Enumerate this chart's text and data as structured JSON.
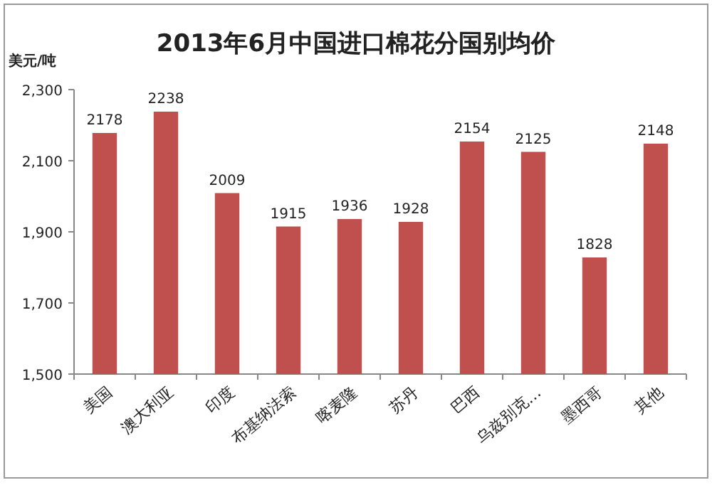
{
  "chart_data": {
    "type": "bar",
    "title": "2013年6月中国进口棉花分国别均价",
    "ylabel": "美元/吨",
    "categories": [
      "美国",
      "澳大利亚",
      "印度",
      "布基纳法索",
      "喀麦隆",
      "苏丹",
      "巴西",
      "乌兹别克…",
      "墨西哥",
      "其他"
    ],
    "values": [
      2178,
      2238,
      2009,
      1915,
      1936,
      1928,
      2154,
      2125,
      1828,
      2148
    ],
    "color": "#c0504d",
    "data_labels": true,
    "ylim": [
      1500,
      2300
    ],
    "yticks": [
      {
        "value": 1500,
        "label": "1,500"
      },
      {
        "value": 1700,
        "label": "1,700"
      },
      {
        "value": 1900,
        "label": "1,900"
      },
      {
        "value": 2100,
        "label": "2,100"
      },
      {
        "value": 2300,
        "label": "2,300"
      }
    ],
    "grid": false
  }
}
